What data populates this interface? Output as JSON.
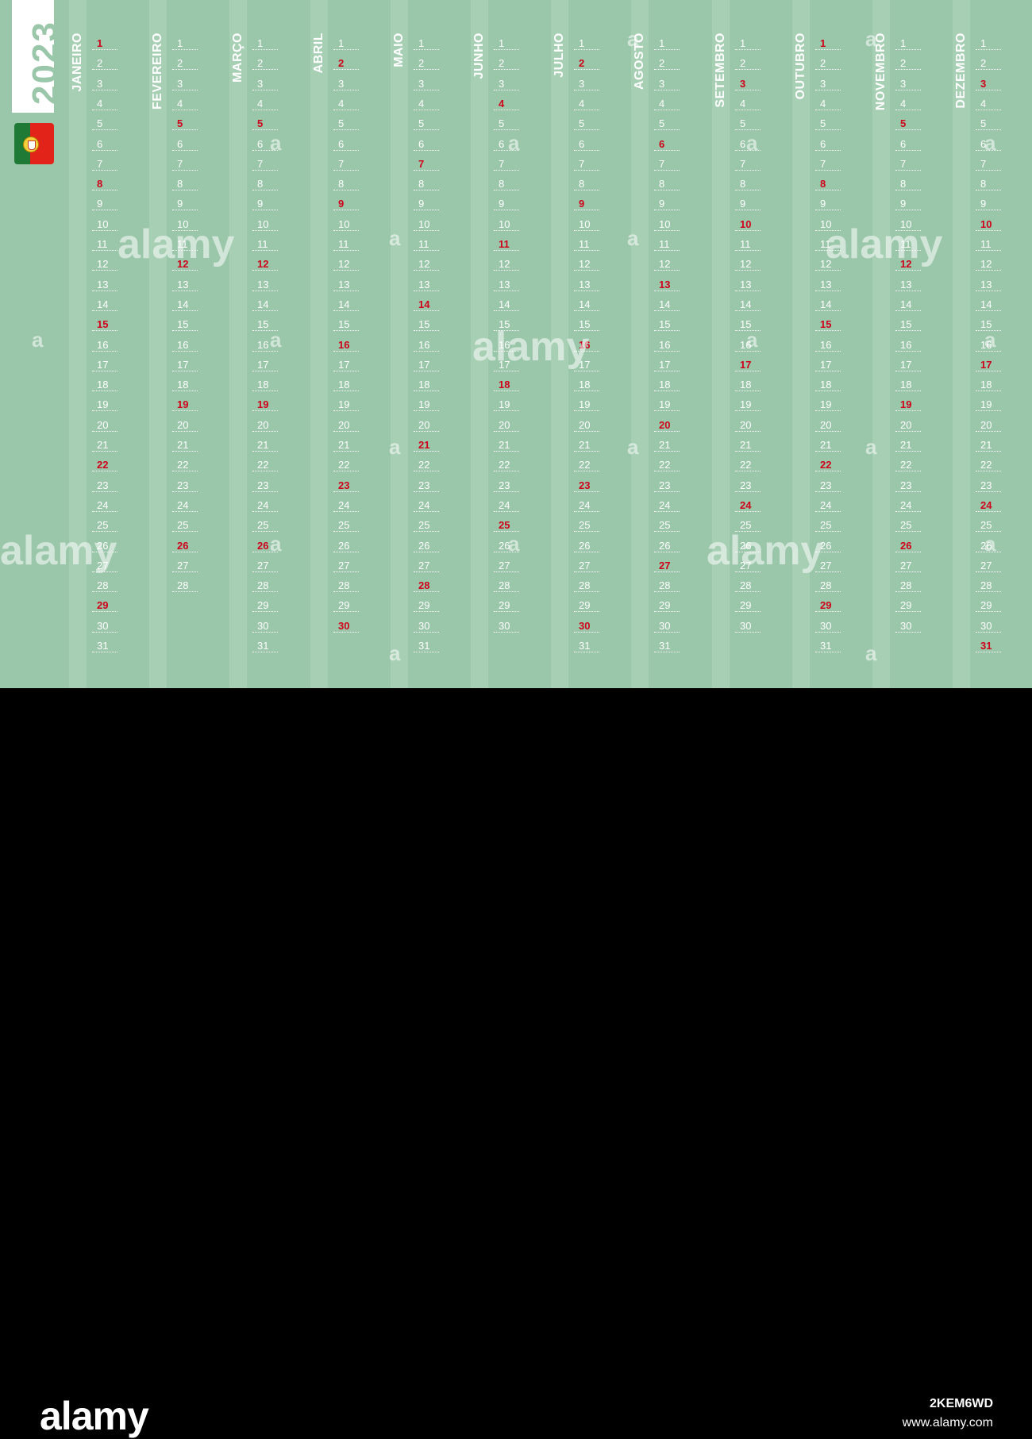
{
  "year": "2023",
  "flag": {
    "country": "Portugal",
    "colors": {
      "green": "#1f7a35",
      "red": "#e2231a"
    }
  },
  "colors": {
    "background": "#9ac6a9",
    "stripe": "#a7cfb4",
    "text": "#ffffff",
    "sunday": "#d0021b"
  },
  "months": [
    {
      "name": "JANEIRO",
      "days": 31,
      "sundays": [
        1,
        8,
        15,
        22,
        29
      ]
    },
    {
      "name": "FEVEREIRO",
      "days": 28,
      "sundays": [
        5,
        12,
        19,
        26
      ]
    },
    {
      "name": "MARÇO",
      "days": 31,
      "sundays": [
        5,
        12,
        19,
        26
      ]
    },
    {
      "name": "ABRIL",
      "days": 30,
      "sundays": [
        2,
        9,
        16,
        23,
        30
      ]
    },
    {
      "name": "MAIO",
      "days": 31,
      "sundays": [
        7,
        14,
        21,
        28
      ]
    },
    {
      "name": "JUNHO",
      "days": 30,
      "sundays": [
        4,
        11,
        18,
        25
      ]
    },
    {
      "name": "JULHO",
      "days": 31,
      "sundays": [
        2,
        9,
        16,
        23,
        30
      ]
    },
    {
      "name": "AGOSTO",
      "days": 31,
      "sundays": [
        6,
        13,
        20,
        27
      ]
    },
    {
      "name": "SETEMBRO",
      "days": 30,
      "sundays": [
        3,
        10,
        17,
        24
      ]
    },
    {
      "name": "OUTUBRO",
      "days": 31,
      "sundays": [
        1,
        8,
        15,
        22,
        29
      ]
    },
    {
      "name": "NOVEMBRO",
      "days": 30,
      "sundays": [
        5,
        12,
        19,
        26
      ]
    },
    {
      "name": "DEZEMBRO",
      "days": 31,
      "sundays": [
        3,
        10,
        17,
        24,
        31
      ]
    }
  ],
  "footer": {
    "logo": "alamy",
    "image_id": "2KEM6WD",
    "site": "www.alamy.com"
  },
  "watermark": {
    "text": "alamy",
    "letter": "a"
  }
}
